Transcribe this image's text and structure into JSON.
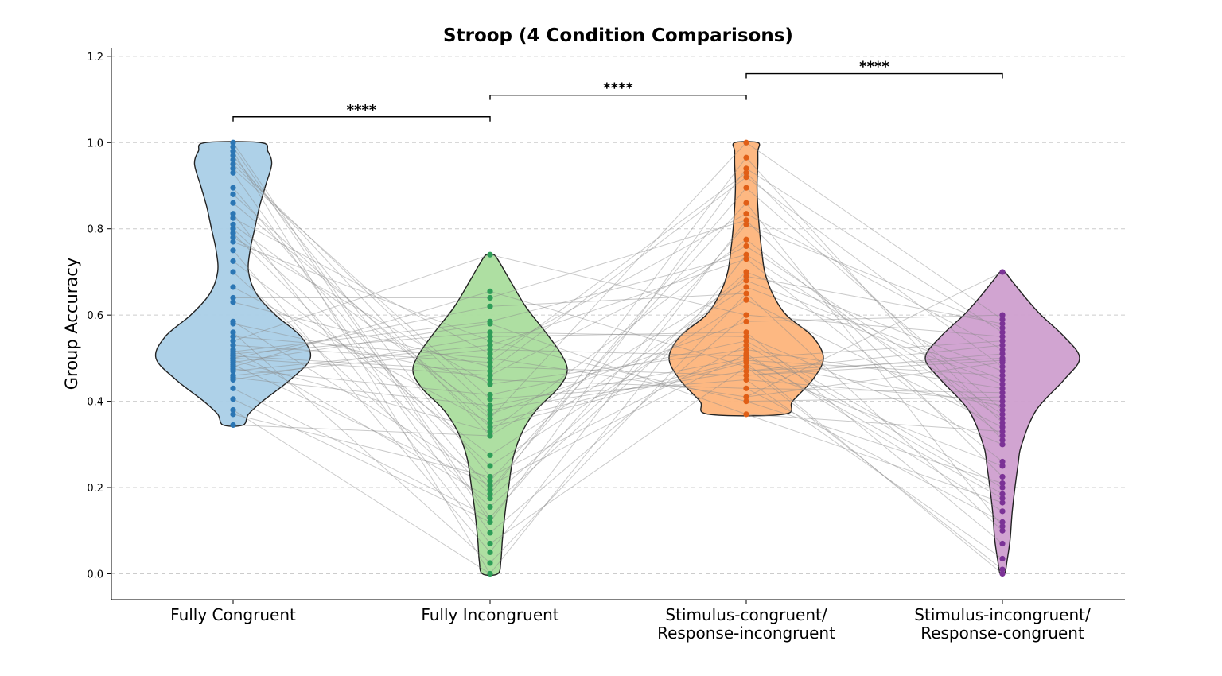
{
  "chart_data": {
    "type": "violin",
    "title": "Stroop (4 Condition Comparisons)",
    "xlabel": "",
    "ylabel": "Group Accuracy",
    "ylim": [
      -0.06,
      1.22
    ],
    "yticks": [
      "0.0",
      "0.2",
      "0.4",
      "0.6",
      "0.8",
      "1.0",
      "1.2"
    ],
    "grid": true,
    "paired_lines": true,
    "categories": [
      {
        "lines": [
          "Fully Congruent"
        ]
      },
      {
        "lines": [
          "Fully Incongruent"
        ]
      },
      {
        "lines": [
          "Stimulus-congruent/",
          "Response-incongruent"
        ]
      },
      {
        "lines": [
          "Stimulus-incongruent/",
          "Response-congruent"
        ]
      }
    ],
    "colors": {
      "fill": [
        "#aacfe7",
        "#aadd9d",
        "#fdb47b",
        "#cf9fcf"
      ],
      "points": [
        "#2b76b4",
        "#2e9e58",
        "#e05e16",
        "#7b3296"
      ],
      "lines": "#8a8a8a"
    },
    "series": [
      {
        "values": [
          1.0,
          0.99,
          0.98,
          0.97,
          0.96,
          0.95,
          0.94,
          0.93,
          0.895,
          0.88,
          0.86,
          0.835,
          0.825,
          0.81,
          0.8,
          0.79,
          0.78,
          0.77,
          0.75,
          0.725,
          0.7,
          0.665,
          0.64,
          0.63,
          0.585,
          0.58,
          0.56,
          0.55,
          0.54,
          0.53,
          0.52,
          0.515,
          0.51,
          0.505,
          0.5,
          0.5,
          0.495,
          0.49,
          0.485,
          0.48,
          0.475,
          0.47,
          0.46,
          0.455,
          0.45,
          0.43,
          0.405,
          0.38,
          0.37,
          0.345
        ]
      },
      {
        "values": [
          0.74,
          0.655,
          0.64,
          0.62,
          0.585,
          0.58,
          0.56,
          0.55,
          0.54,
          0.53,
          0.52,
          0.51,
          0.5,
          0.49,
          0.48,
          0.47,
          0.46,
          0.45,
          0.44,
          0.415,
          0.405,
          0.39,
          0.38,
          0.37,
          0.36,
          0.35,
          0.34,
          0.33,
          0.32,
          0.275,
          0.25,
          0.225,
          0.215,
          0.205,
          0.195,
          0.185,
          0.175,
          0.155,
          0.13,
          0.12,
          0.095,
          0.07,
          0.05,
          0.025,
          0.0
        ]
      },
      {
        "values": [
          1.0,
          0.965,
          0.94,
          0.93,
          0.92,
          0.895,
          0.86,
          0.835,
          0.82,
          0.81,
          0.775,
          0.76,
          0.74,
          0.73,
          0.7,
          0.69,
          0.68,
          0.665,
          0.65,
          0.635,
          0.6,
          0.585,
          0.56,
          0.55,
          0.54,
          0.53,
          0.52,
          0.51,
          0.505,
          0.5,
          0.495,
          0.49,
          0.48,
          0.47,
          0.46,
          0.45,
          0.43,
          0.41,
          0.4,
          0.37
        ]
      },
      {
        "values": [
          0.7,
          0.6,
          0.59,
          0.58,
          0.57,
          0.56,
          0.55,
          0.54,
          0.53,
          0.52,
          0.51,
          0.5,
          0.495,
          0.49,
          0.48,
          0.47,
          0.46,
          0.45,
          0.44,
          0.43,
          0.42,
          0.41,
          0.4,
          0.39,
          0.38,
          0.37,
          0.36,
          0.35,
          0.34,
          0.33,
          0.32,
          0.31,
          0.3,
          0.26,
          0.25,
          0.225,
          0.21,
          0.2,
          0.185,
          0.175,
          0.165,
          0.145,
          0.12,
          0.11,
          0.1,
          0.07,
          0.035,
          0.01,
          0.0
        ]
      }
    ],
    "violin_profiles": [
      [
        [
          0.345,
          0.13
        ],
        [
          0.37,
          0.2
        ],
        [
          0.4,
          0.38
        ],
        [
          0.45,
          0.74
        ],
        [
          0.5,
          1.0
        ],
        [
          0.55,
          0.88
        ],
        [
          0.6,
          0.55
        ],
        [
          0.65,
          0.3
        ],
        [
          0.7,
          0.2
        ],
        [
          0.75,
          0.22
        ],
        [
          0.8,
          0.28
        ],
        [
          0.85,
          0.34
        ],
        [
          0.9,
          0.42
        ],
        [
          0.95,
          0.5
        ],
        [
          0.98,
          0.45
        ],
        [
          1.0,
          0.36
        ]
      ],
      [
        [
          0.0,
          0.1
        ],
        [
          0.03,
          0.14
        ],
        [
          0.08,
          0.16
        ],
        [
          0.15,
          0.2
        ],
        [
          0.2,
          0.24
        ],
        [
          0.27,
          0.3
        ],
        [
          0.33,
          0.42
        ],
        [
          0.38,
          0.6
        ],
        [
          0.43,
          0.88
        ],
        [
          0.47,
          1.0
        ],
        [
          0.51,
          0.92
        ],
        [
          0.56,
          0.72
        ],
        [
          0.62,
          0.46
        ],
        [
          0.68,
          0.26
        ],
        [
          0.72,
          0.13
        ],
        [
          0.74,
          0.05
        ]
      ],
      [
        [
          0.37,
          0.49
        ],
        [
          0.4,
          0.6
        ],
        [
          0.45,
          0.86
        ],
        [
          0.5,
          1.0
        ],
        [
          0.55,
          0.86
        ],
        [
          0.6,
          0.52
        ],
        [
          0.65,
          0.34
        ],
        [
          0.7,
          0.24
        ],
        [
          0.75,
          0.2
        ],
        [
          0.8,
          0.17
        ],
        [
          0.85,
          0.15
        ],
        [
          0.9,
          0.14
        ],
        [
          0.95,
          0.15
        ],
        [
          0.98,
          0.15
        ],
        [
          1.0,
          0.15
        ]
      ],
      [
        [
          0.0,
          0.03
        ],
        [
          0.03,
          0.06
        ],
        [
          0.08,
          0.1
        ],
        [
          0.15,
          0.13
        ],
        [
          0.25,
          0.2
        ],
        [
          0.3,
          0.25
        ],
        [
          0.38,
          0.44
        ],
        [
          0.45,
          0.8
        ],
        [
          0.5,
          1.0
        ],
        [
          0.55,
          0.8
        ],
        [
          0.6,
          0.5
        ],
        [
          0.64,
          0.3
        ],
        [
          0.68,
          0.12
        ],
        [
          0.7,
          0.03
        ]
      ]
    ],
    "comparisons": [
      {
        "pair": [
          0,
          1
        ],
        "y": 1.06,
        "label": "****"
      },
      {
        "pair": [
          1,
          2
        ],
        "y": 1.11,
        "label": "****"
      },
      {
        "pair": [
          2,
          3
        ],
        "y": 1.16,
        "label": "****"
      }
    ]
  }
}
